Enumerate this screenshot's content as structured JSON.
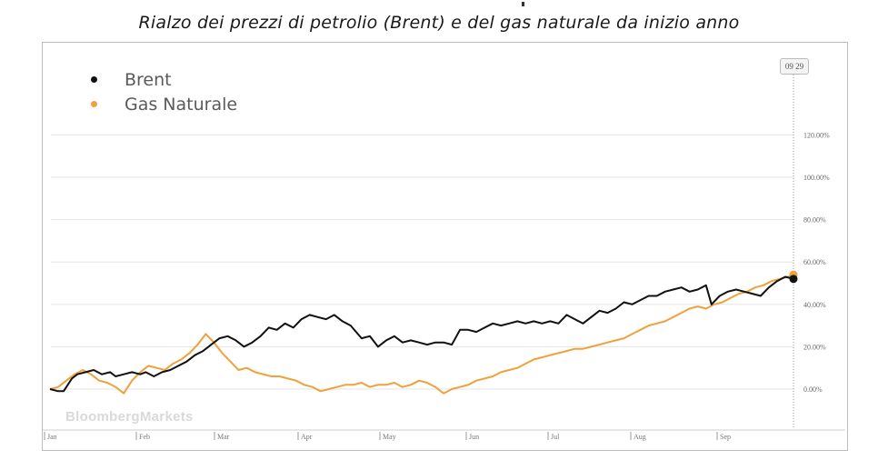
{
  "title": "Rialzo dei prezzi di petrolio (Brent) e del gas naturale da inizio anno",
  "watermark": "BloombergMarkets",
  "date_badge": "09 29",
  "colors": {
    "brent": "#111111",
    "gas": "#f0a13c",
    "grid": "#e6e6e6"
  },
  "chart_data": {
    "type": "line",
    "title": "Rialzo dei prezzi di petrolio (Brent) e del gas naturale da inizio anno",
    "xlabel": "",
    "ylabel": "",
    "x_ticks": [
      "Jan",
      "Feb",
      "Mar",
      "Apr",
      "May",
      "Jun",
      "Jul",
      "Aug",
      "Sep"
    ],
    "y_ticks": [
      "0.00%",
      "20.00%",
      "40.00%",
      "60.00%",
      "80.00%",
      "100.00%",
      "120.00%"
    ],
    "ylim": [
      -12,
      145
    ],
    "xlim": [
      0,
      272
    ],
    "grid": true,
    "legend_position": "top-left",
    "series": [
      {
        "name": "Brent",
        "color": "#111111",
        "points": [
          [
            0,
            0
          ],
          [
            3,
            -1
          ],
          [
            5,
            -1
          ],
          [
            8,
            5
          ],
          [
            10,
            7
          ],
          [
            13,
            8
          ],
          [
            16,
            9
          ],
          [
            19,
            7
          ],
          [
            22,
            8
          ],
          [
            24,
            6
          ],
          [
            27,
            7
          ],
          [
            30,
            8
          ],
          [
            33,
            7
          ],
          [
            35,
            8
          ],
          [
            38,
            6
          ],
          [
            41,
            8
          ],
          [
            44,
            9
          ],
          [
            47,
            11
          ],
          [
            50,
            13
          ],
          [
            53,
            16
          ],
          [
            56,
            18
          ],
          [
            59,
            21
          ],
          [
            62,
            24
          ],
          [
            65,
            25
          ],
          [
            68,
            23
          ],
          [
            71,
            20
          ],
          [
            74,
            22
          ],
          [
            77,
            25
          ],
          [
            80,
            29
          ],
          [
            83,
            28
          ],
          [
            86,
            31
          ],
          [
            89,
            29
          ],
          [
            92,
            33
          ],
          [
            95,
            35
          ],
          [
            98,
            34
          ],
          [
            101,
            33
          ],
          [
            104,
            35
          ],
          [
            107,
            32
          ],
          [
            110,
            30
          ],
          [
            112,
            27
          ],
          [
            114,
            24
          ],
          [
            117,
            25
          ],
          [
            120,
            20
          ],
          [
            123,
            23
          ],
          [
            126,
            25
          ],
          [
            129,
            22
          ],
          [
            132,
            23
          ],
          [
            135,
            22
          ],
          [
            138,
            21
          ],
          [
            141,
            22
          ],
          [
            144,
            22
          ],
          [
            147,
            21
          ],
          [
            150,
            28
          ],
          [
            153,
            28
          ],
          [
            156,
            27
          ],
          [
            159,
            29
          ],
          [
            162,
            31
          ],
          [
            165,
            30
          ],
          [
            168,
            31
          ],
          [
            171,
            32
          ],
          [
            174,
            31
          ],
          [
            177,
            32
          ],
          [
            180,
            31
          ],
          [
            183,
            32
          ],
          [
            186,
            31
          ],
          [
            189,
            35
          ],
          [
            192,
            33
          ],
          [
            195,
            31
          ],
          [
            198,
            34
          ],
          [
            201,
            37
          ],
          [
            204,
            36
          ],
          [
            207,
            38
          ],
          [
            210,
            41
          ],
          [
            213,
            40
          ],
          [
            216,
            42
          ],
          [
            219,
            44
          ],
          [
            222,
            44
          ],
          [
            225,
            46
          ],
          [
            228,
            47
          ],
          [
            231,
            48
          ],
          [
            234,
            46
          ],
          [
            237,
            47
          ],
          [
            240,
            49
          ],
          [
            242,
            40
          ],
          [
            245,
            44
          ],
          [
            248,
            46
          ],
          [
            251,
            47
          ],
          [
            254,
            46
          ],
          [
            257,
            45
          ],
          [
            260,
            44
          ],
          [
            263,
            48
          ],
          [
            266,
            51
          ],
          [
            269,
            53
          ],
          [
            272,
            52
          ]
        ]
      },
      {
        "name": "Gas Naturale",
        "color": "#f0a13c",
        "points": [
          [
            0,
            0
          ],
          [
            3,
            1
          ],
          [
            6,
            4
          ],
          [
            9,
            7
          ],
          [
            12,
            9
          ],
          [
            15,
            7
          ],
          [
            18,
            4
          ],
          [
            21,
            3
          ],
          [
            24,
            1
          ],
          [
            27,
            -2
          ],
          [
            30,
            4
          ],
          [
            33,
            8
          ],
          [
            36,
            11
          ],
          [
            39,
            10
          ],
          [
            42,
            9
          ],
          [
            45,
            12
          ],
          [
            48,
            14
          ],
          [
            51,
            17
          ],
          [
            54,
            21
          ],
          [
            57,
            26
          ],
          [
            60,
            22
          ],
          [
            63,
            17
          ],
          [
            66,
            13
          ],
          [
            69,
            9
          ],
          [
            72,
            10
          ],
          [
            75,
            8
          ],
          [
            78,
            7
          ],
          [
            81,
            6
          ],
          [
            84,
            6
          ],
          [
            87,
            5
          ],
          [
            90,
            4
          ],
          [
            93,
            2
          ],
          [
            96,
            1
          ],
          [
            99,
            -1
          ],
          [
            102,
            0
          ],
          [
            105,
            1
          ],
          [
            108,
            2
          ],
          [
            111,
            2
          ],
          [
            114,
            3
          ],
          [
            117,
            1
          ],
          [
            120,
            2
          ],
          [
            123,
            2
          ],
          [
            126,
            3
          ],
          [
            129,
            1
          ],
          [
            132,
            2
          ],
          [
            135,
            4
          ],
          [
            138,
            3
          ],
          [
            141,
            1
          ],
          [
            144,
            -2
          ],
          [
            147,
            0
          ],
          [
            150,
            1
          ],
          [
            153,
            2
          ],
          [
            156,
            4
          ],
          [
            159,
            5
          ],
          [
            162,
            6
          ],
          [
            165,
            8
          ],
          [
            168,
            9
          ],
          [
            171,
            10
          ],
          [
            174,
            12
          ],
          [
            177,
            14
          ],
          [
            180,
            15
          ],
          [
            183,
            16
          ],
          [
            186,
            17
          ],
          [
            189,
            18
          ],
          [
            192,
            19
          ],
          [
            195,
            19
          ],
          [
            198,
            20
          ],
          [
            201,
            21
          ],
          [
            204,
            22
          ],
          [
            207,
            23
          ],
          [
            210,
            24
          ],
          [
            213,
            26
          ],
          [
            216,
            28
          ],
          [
            219,
            30
          ],
          [
            222,
            31
          ],
          [
            225,
            32
          ],
          [
            228,
            34
          ],
          [
            231,
            36
          ],
          [
            234,
            38
          ],
          [
            237,
            39
          ],
          [
            240,
            38
          ],
          [
            243,
            40
          ],
          [
            246,
            41
          ],
          [
            249,
            43
          ],
          [
            252,
            45
          ],
          [
            255,
            46
          ],
          [
            258,
            48
          ],
          [
            261,
            49
          ],
          [
            264,
            51
          ],
          [
            267,
            52
          ],
          [
            270,
            53
          ],
          [
            272,
            54
          ]
        ]
      }
    ]
  }
}
